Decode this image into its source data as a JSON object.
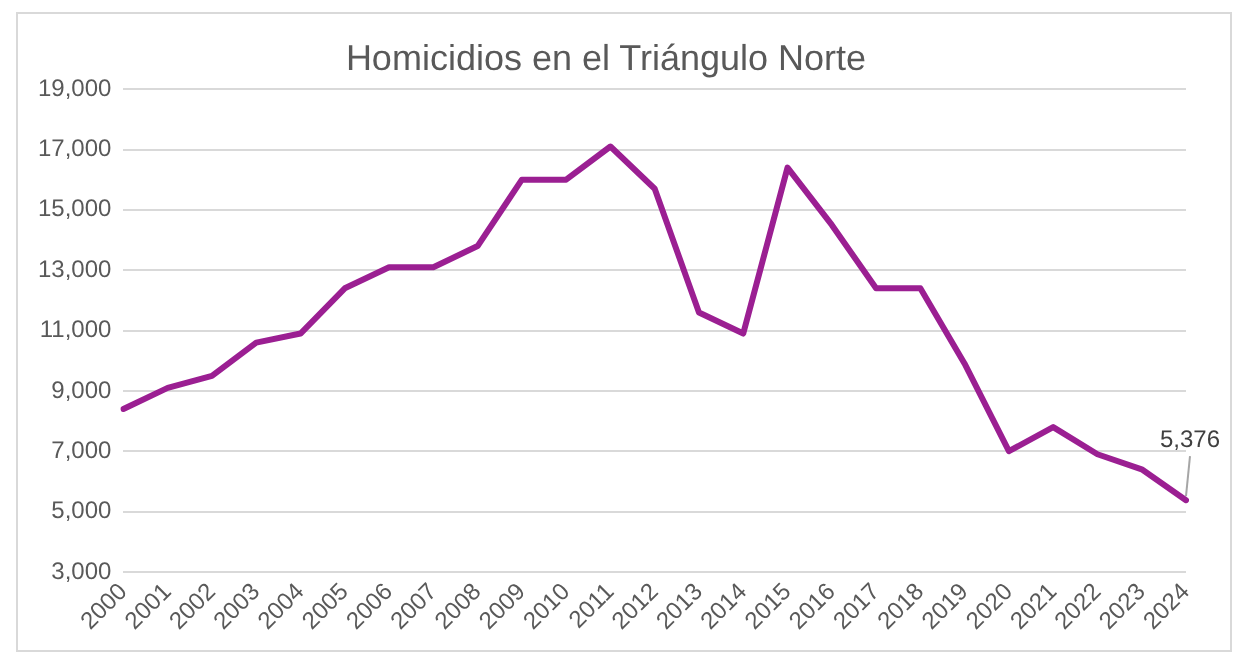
{
  "chart_data": {
    "type": "line",
    "title": "Homicidios en el Triángulo Norte",
    "categories": [
      "2000",
      "2001",
      "2002",
      "2003",
      "2004",
      "2005",
      "2006",
      "2007",
      "2008",
      "2009",
      "2010",
      "2011",
      "2012",
      "2013",
      "2014",
      "2015",
      "2016",
      "2017",
      "2018",
      "2019",
      "2020",
      "2021",
      "2022",
      "2023",
      "2024"
    ],
    "series": [
      {
        "color": "#9b1f92",
        "values": [
          8400,
          9100,
          9500,
          10600,
          10900,
          12400,
          13100,
          13100,
          13800,
          16000,
          16000,
          17100,
          15700,
          11600,
          10900,
          16400,
          14500,
          12400,
          12400,
          9900,
          7000,
          7800,
          6900,
          6400,
          5376
        ]
      }
    ],
    "ylim": [
      3000,
      19000
    ],
    "yticks": [
      {
        "value": 3000,
        "label": "3,000"
      },
      {
        "value": 5000,
        "label": "5,000"
      },
      {
        "value": 7000,
        "label": "7,000"
      },
      {
        "value": 9000,
        "label": "9,000"
      },
      {
        "value": 11000,
        "label": "11,000"
      },
      {
        "value": 13000,
        "label": "13,000"
      },
      {
        "value": 15000,
        "label": "15,000"
      },
      {
        "value": 17000,
        "label": "17,000"
      },
      {
        "value": 19000,
        "label": "19,000"
      }
    ],
    "grid": "y",
    "legend": false,
    "marker": "none",
    "line_style": "solid",
    "annotations": [
      {
        "text": "5,376",
        "x": "2024",
        "y": 5376
      }
    ]
  }
}
